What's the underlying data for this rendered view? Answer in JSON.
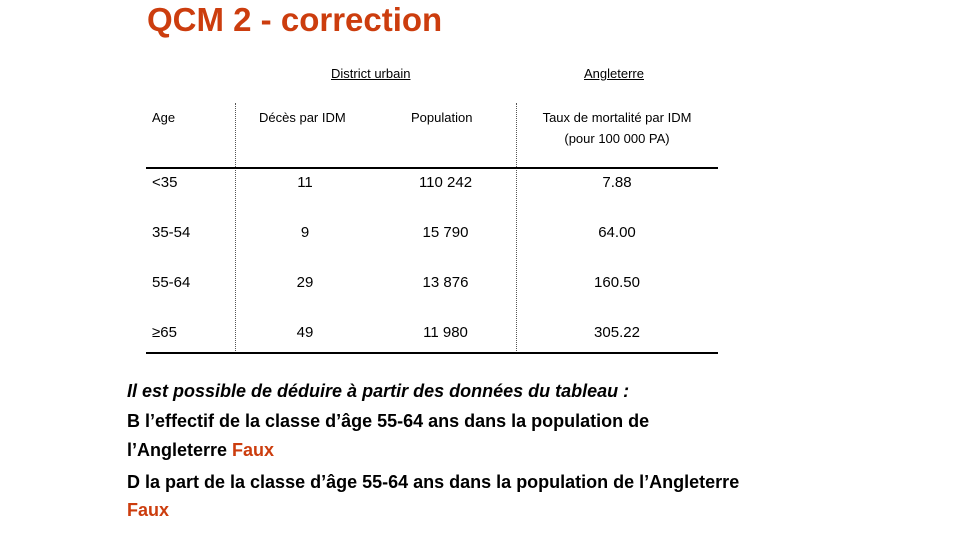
{
  "title": "QCM 2 - correction",
  "table": {
    "group_headers": {
      "district": "District urbain",
      "england": "Angleterre"
    },
    "columns": {
      "age": "Age",
      "deaths": "Décès par IDM",
      "population": "Population",
      "rate_line1": "Taux de mortalité par IDM",
      "rate_line2": "(pour 100 000 PA)"
    },
    "rows": [
      {
        "age": "<35",
        "deaths": "11",
        "population": "110 242",
        "rate": "7.88"
      },
      {
        "age": "35-54",
        "deaths": "9",
        "population": "15 790",
        "rate": "64.00"
      },
      {
        "age": "55-64",
        "deaths": "29",
        "population": "13 876",
        "rate": "160.50"
      },
      {
        "age": "≥65",
        "deaths": "49",
        "population": "11 980",
        "rate": "305.22"
      }
    ]
  },
  "question": {
    "intro": "Il est possible de déduire à partir des données du tableau :",
    "b_line1": "B  l’effectif de la classe d’âge 55-64 ans dans la population de",
    "b_line2": "l’Angleterre",
    "b_answer": "Faux",
    "d_line1": "D  la part de la classe d’âge 55-64 ans dans la population de l’Angleterre",
    "d_answer": "Faux"
  },
  "colors": {
    "accent": "#cc3d0e"
  }
}
